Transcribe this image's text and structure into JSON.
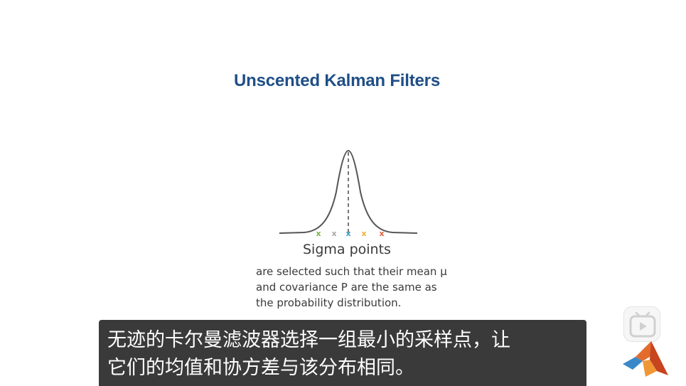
{
  "slide": {
    "title": "Unscented Kalman Filters",
    "caption_heading": "Sigma points",
    "caption_lines": [
      "are selected such that their mean μ",
      "and covariance P are the same as",
      "the probability distribution."
    ]
  },
  "sigma_points": {
    "markers": [
      "x",
      "x",
      "x",
      "x",
      "x"
    ],
    "colors": [
      "#7ab648",
      "#a8a8a8",
      "#3aa0d8",
      "#f0b030",
      "#e0623a"
    ]
  },
  "subtitle": {
    "lines": [
      "无迹的卡尔曼滤波器选择一组最小的采样点，让",
      "它们的均值和协方差与该分布相同。"
    ]
  },
  "icons": {
    "player_icon": "tv-play-icon",
    "brand_logo": "matlab-logo-icon"
  },
  "colors": {
    "title": "#1f4f86",
    "subtitle_bg": "#3a3a3a",
    "curve": "#555555"
  }
}
